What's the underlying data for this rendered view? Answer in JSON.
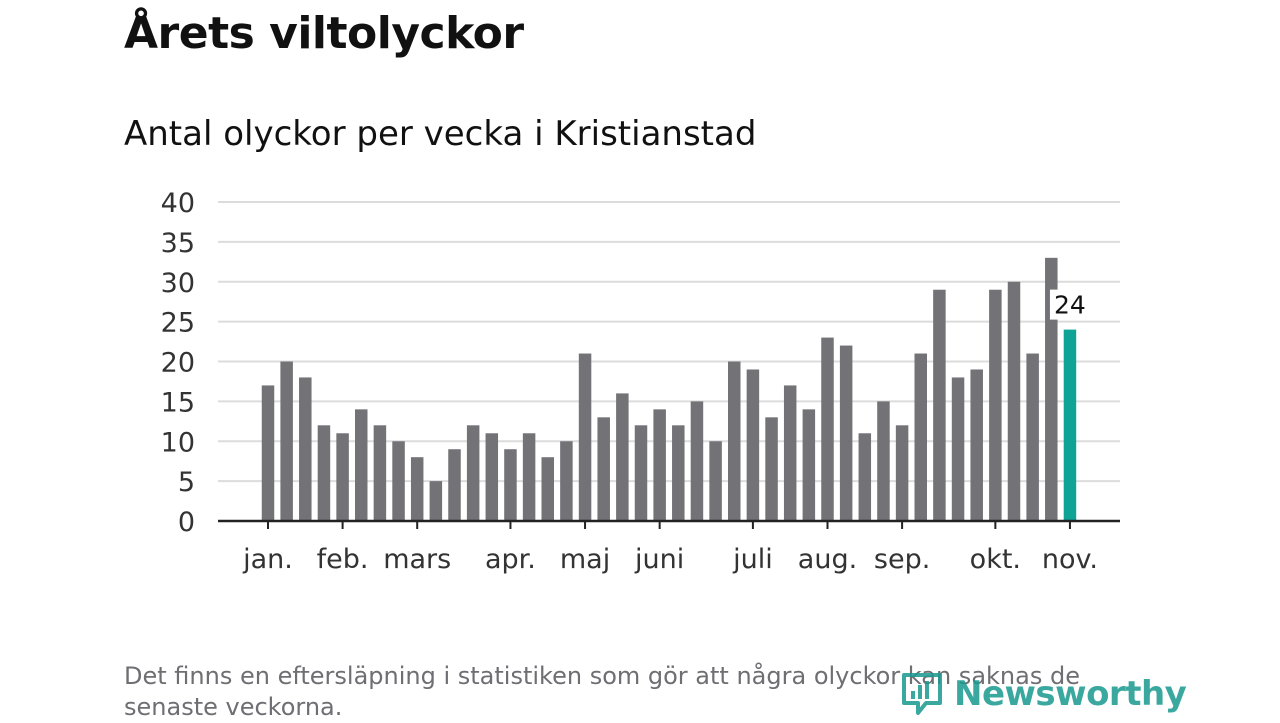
{
  "header": {
    "title": "Årets viltolyckor",
    "subtitle": "Antal olyckor per vecka i Kristianstad"
  },
  "chart_data": {
    "type": "bar",
    "title": "Årets viltolyckor",
    "subtitle": "Antal olyckor per vecka i Kristianstad",
    "xlabel": "",
    "ylabel": "",
    "ylim": [
      0,
      40
    ],
    "yticks": [
      "0",
      "5",
      "10",
      "15",
      "20",
      "25",
      "30",
      "35",
      "40"
    ],
    "grid": true,
    "month_labels": [
      {
        "label": "jan.",
        "week": 1
      },
      {
        "label": "feb.",
        "week": 5
      },
      {
        "label": "mars",
        "week": 9
      },
      {
        "label": "apr.",
        "week": 14
      },
      {
        "label": "maj",
        "week": 18
      },
      {
        "label": "juni",
        "week": 22
      },
      {
        "label": "juli",
        "week": 27
      },
      {
        "label": "aug.",
        "week": 31
      },
      {
        "label": "sep.",
        "week": 35
      },
      {
        "label": "okt.",
        "week": 40
      },
      {
        "label": "nov.",
        "week": 44
      }
    ],
    "values": [
      17,
      20,
      18,
      12,
      11,
      14,
      12,
      10,
      8,
      5,
      9,
      12,
      11,
      9,
      11,
      8,
      10,
      21,
      13,
      16,
      12,
      14,
      12,
      15,
      10,
      20,
      19,
      13,
      17,
      14,
      23,
      22,
      11,
      15,
      12,
      21,
      29,
      18,
      19,
      29,
      30,
      21,
      33,
      24
    ],
    "highlight_index": 43,
    "highlight_label": "24",
    "colors": {
      "bar": "#737277",
      "highlight": "#0fa396",
      "grid": "#dcdcdc",
      "axis": "#222222"
    }
  },
  "footer": {
    "note": "Det finns en eftersläpning i statistiken som gör att några olyckor kan saknas de senaste veckorna.",
    "logo_text": "Newsworthy"
  }
}
